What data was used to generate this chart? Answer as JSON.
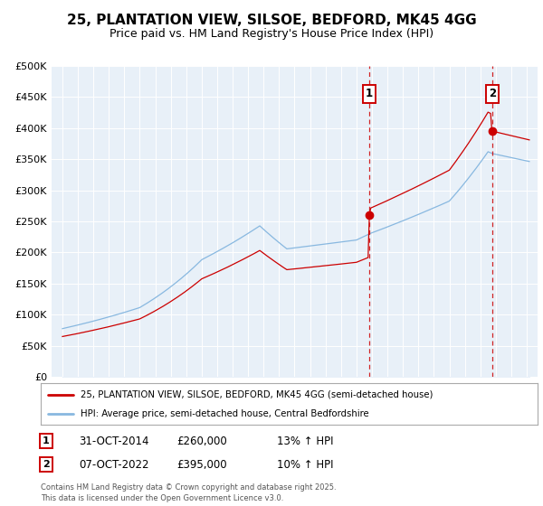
{
  "title": "25, PLANTATION VIEW, SILSOE, BEDFORD, MK45 4GG",
  "subtitle": "Price paid vs. HM Land Registry's House Price Index (HPI)",
  "bg_color": "#e8f0f8",
  "legend_label_red": "25, PLANTATION VIEW, SILSOE, BEDFORD, MK45 4GG (semi-detached house)",
  "legend_label_blue": "HPI: Average price, semi-detached house, Central Bedfordshire",
  "annotation1_date": "31-OCT-2014",
  "annotation1_price": "£260,000",
  "annotation1_hpi": "13% ↑ HPI",
  "annotation2_date": "07-OCT-2022",
  "annotation2_price": "£395,000",
  "annotation2_hpi": "10% ↑ HPI",
  "footnote": "Contains HM Land Registry data © Crown copyright and database right 2025.\nThis data is licensed under the Open Government Licence v3.0.",
  "purchase1_year": 2014.83,
  "purchase1_price": 260000,
  "purchase2_year": 2022.77,
  "purchase2_price": 395000,
  "ylim": [
    0,
    500000
  ],
  "yticks": [
    0,
    50000,
    100000,
    150000,
    200000,
    250000,
    300000,
    350000,
    400000,
    450000,
    500000
  ],
  "red_color": "#cc0000",
  "blue_color": "#88b8e0",
  "dashed_color": "#cc0000",
  "grid_color": "#ffffff",
  "title_fontsize": 11,
  "subtitle_fontsize": 9
}
